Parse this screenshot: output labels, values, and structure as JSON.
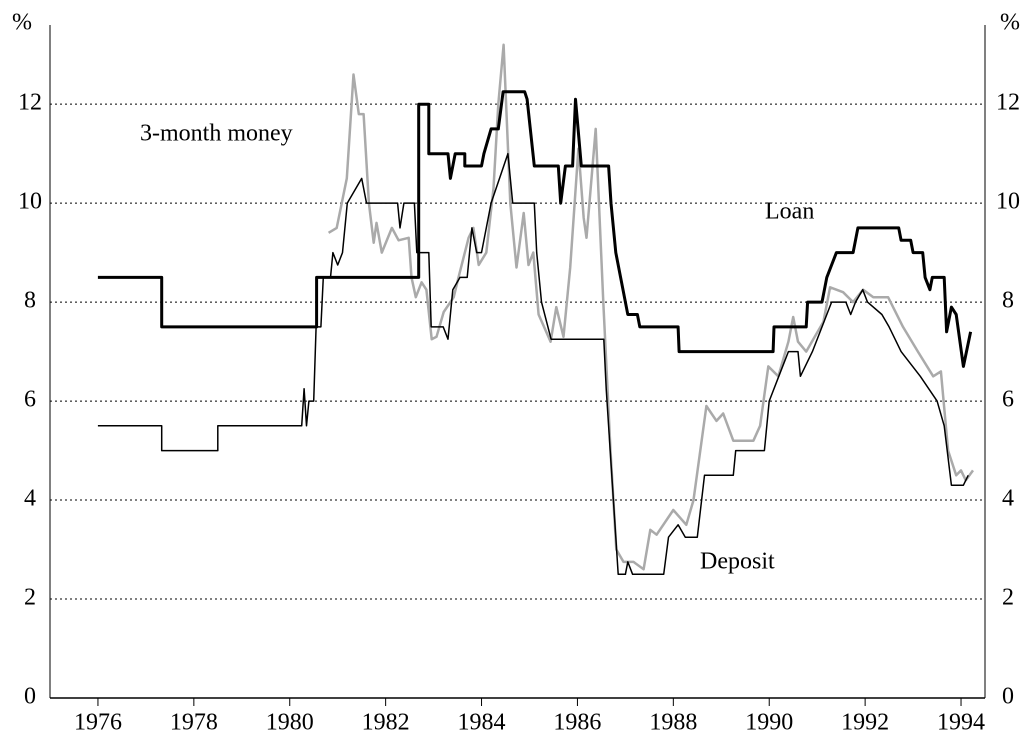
{
  "chart_data": {
    "type": "line",
    "y_unit_left": "%",
    "y_unit_right": "%",
    "xlim": [
      1975,
      1994.5
    ],
    "xticks": [
      1976,
      1978,
      1980,
      1982,
      1984,
      1986,
      1988,
      1990,
      1992,
      1994
    ],
    "ylim": [
      0,
      13.6
    ],
    "yticks": [
      0,
      2,
      4,
      6,
      8,
      10,
      12
    ],
    "y2lim": [
      0,
      13.6
    ],
    "y2ticks": [
      0,
      2,
      4,
      6,
      8,
      10,
      12
    ],
    "grid": true,
    "series": [
      {
        "name": "Loan",
        "color": "#000000",
        "x": [
          1976.0,
          1977.33,
          1977.33,
          1980.56,
          1980.56,
          1982.69,
          1982.69,
          1982.9,
          1982.9,
          1983.3,
          1983.35,
          1983.45,
          1983.65,
          1983.65,
          1984.0,
          1984.05,
          1984.2,
          1984.35,
          1984.45,
          1984.9,
          1984.95,
          1985.1,
          1985.6,
          1985.65,
          1985.75,
          1985.9,
          1985.96,
          1986.08,
          1986.65,
          1986.7,
          1986.8,
          1986.9,
          1987.05,
          1987.25,
          1987.3,
          1988.1,
          1988.12,
          1990.08,
          1990.1,
          1990.77,
          1990.8,
          1991.1,
          1991.2,
          1991.3,
          1991.4,
          1991.75,
          1991.85,
          1992.7,
          1992.75,
          1992.95,
          1993.0,
          1993.2,
          1993.25,
          1993.35,
          1993.4,
          1993.65,
          1993.7,
          1993.8,
          1993.9,
          1993.95,
          1994.05,
          1994.2
        ],
        "values": [
          8.5,
          8.5,
          7.5,
          7.5,
          8.5,
          8.5,
          12,
          12,
          11,
          11,
          10.5,
          11,
          11,
          10.75,
          10.75,
          11,
          11.5,
          11.5,
          12.25,
          12.25,
          12.1,
          10.75,
          10.75,
          10,
          10.75,
          10.75,
          12.1,
          10.75,
          10.75,
          10,
          9,
          8.5,
          7.75,
          7.75,
          7.5,
          7.5,
          7,
          7,
          7.5,
          7.5,
          8,
          8,
          8.5,
          8.75,
          9,
          9,
          9.5,
          9.5,
          9.25,
          9.25,
          9,
          9,
          8.5,
          8.25,
          8.5,
          8.5,
          7.4,
          7.9,
          7.75,
          7.4,
          6.7,
          7.4
        ]
      },
      {
        "name": "Deposit",
        "color": "#000000",
        "x": [
          1976.0,
          1977.33,
          1977.33,
          1978.5,
          1978.5,
          1980.25,
          1980.3,
          1980.35,
          1980.4,
          1980.5,
          1980.55,
          1980.65,
          1980.7,
          1980.85,
          1980.9,
          1981.0,
          1981.1,
          1981.2,
          1981.35,
          1981.5,
          1981.6,
          1982.25,
          1982.3,
          1982.38,
          1982.6,
          1982.65,
          1982.9,
          1982.95,
          1983.2,
          1983.3,
          1983.4,
          1983.55,
          1983.7,
          1983.8,
          1983.9,
          1984.0,
          1984.1,
          1984.2,
          1984.55,
          1984.65,
          1985.1,
          1985.15,
          1985.25,
          1985.45,
          1986.55,
          1986.6,
          1986.75,
          1986.85,
          1987.0,
          1987.05,
          1987.15,
          1987.8,
          1987.9,
          1988.1,
          1988.25,
          1988.5,
          1988.65,
          1989.25,
          1989.3,
          1989.9,
          1990.0,
          1990.2,
          1990.4,
          1990.6,
          1990.65,
          1990.9,
          1991.1,
          1991.3,
          1991.6,
          1991.7,
          1991.8,
          1991.95,
          1992.05,
          1992.35,
          1992.5,
          1992.75,
          1993.15,
          1993.5,
          1993.65,
          1993.8,
          1994.05,
          1994.15
        ],
        "values": [
          5.5,
          5.5,
          5,
          5,
          5.5,
          5.5,
          6.25,
          5.5,
          6,
          6,
          7.5,
          7.5,
          8.5,
          8.5,
          9,
          8.75,
          9,
          10,
          10.25,
          10.5,
          10,
          10,
          9.5,
          10,
          10,
          9,
          9,
          7.5,
          7.5,
          7.25,
          8.25,
          8.5,
          8.5,
          9.5,
          9,
          9,
          9.5,
          10,
          11,
          10,
          10,
          9,
          8,
          7.25,
          7.25,
          6.25,
          4,
          2.5,
          2.5,
          2.75,
          2.5,
          2.5,
          3.25,
          3.5,
          3.25,
          3.25,
          4.5,
          4.5,
          5,
          5,
          6,
          6.5,
          7,
          7,
          6.5,
          7,
          7.5,
          8,
          8,
          7.75,
          8,
          8.25,
          8,
          7.75,
          7.5,
          7,
          6.5,
          6,
          5.5,
          4.3,
          4.3,
          4.5
        ]
      },
      {
        "name": "3-month money",
        "color": "#aaaaaa",
        "x": [
          1980.81,
          1980.98,
          1981.19,
          1981.33,
          1981.44,
          1981.54,
          1981.65,
          1981.75,
          1981.81,
          1981.92,
          1982.13,
          1982.27,
          1982.48,
          1982.54,
          1982.63,
          1982.75,
          1982.85,
          1982.96,
          1983.06,
          1983.21,
          1983.42,
          1983.52,
          1983.73,
          1983.83,
          1983.94,
          1984.1,
          1984.25,
          1984.35,
          1984.46,
          1984.6,
          1984.73,
          1984.88,
          1984.98,
          1985.08,
          1985.19,
          1985.44,
          1985.56,
          1985.71,
          1985.85,
          1986.02,
          1986.13,
          1986.19,
          1986.38,
          1986.54,
          1986.69,
          1986.81,
          1986.96,
          1987.17,
          1987.38,
          1987.52,
          1987.65,
          1987.79,
          1988.0,
          1988.27,
          1988.42,
          1988.69,
          1988.9,
          1989.04,
          1989.25,
          1989.67,
          1989.81,
          1989.98,
          1990.19,
          1990.4,
          1990.5,
          1990.6,
          1990.77,
          1990.92,
          1991.13,
          1991.27,
          1991.54,
          1991.75,
          1991.96,
          1992.17,
          1992.48,
          1992.79,
          1993.1,
          1993.42,
          1993.58,
          1993.73,
          1993.9,
          1994.0,
          1994.1,
          1994.25
        ],
        "values": [
          9.4,
          9.5,
          10.5,
          12.6,
          11.8,
          11.8,
          10,
          9.2,
          9.6,
          9,
          9.5,
          9.25,
          9.3,
          8.5,
          8.1,
          8.4,
          8.25,
          7.25,
          7.3,
          7.8,
          8.1,
          8.5,
          9.3,
          9.5,
          8.75,
          9,
          10.3,
          12,
          13.2,
          10,
          8.7,
          9.8,
          8.75,
          9,
          7.75,
          7.2,
          7.9,
          7.3,
          8.7,
          11.1,
          9.7,
          9.3,
          11.5,
          8,
          5,
          3,
          2.75,
          2.75,
          2.6,
          3.4,
          3.3,
          3.5,
          3.8,
          3.5,
          4,
          5.9,
          5.6,
          5.75,
          5.2,
          5.2,
          5.5,
          6.7,
          6.5,
          7.2,
          7.7,
          7.2,
          7,
          7.25,
          7.6,
          8.3,
          8.2,
          8,
          8.25,
          8.1,
          8.1,
          7.5,
          7,
          6.5,
          6.6,
          5,
          4.5,
          4.6,
          4.4,
          4.6
        ]
      }
    ]
  }
}
